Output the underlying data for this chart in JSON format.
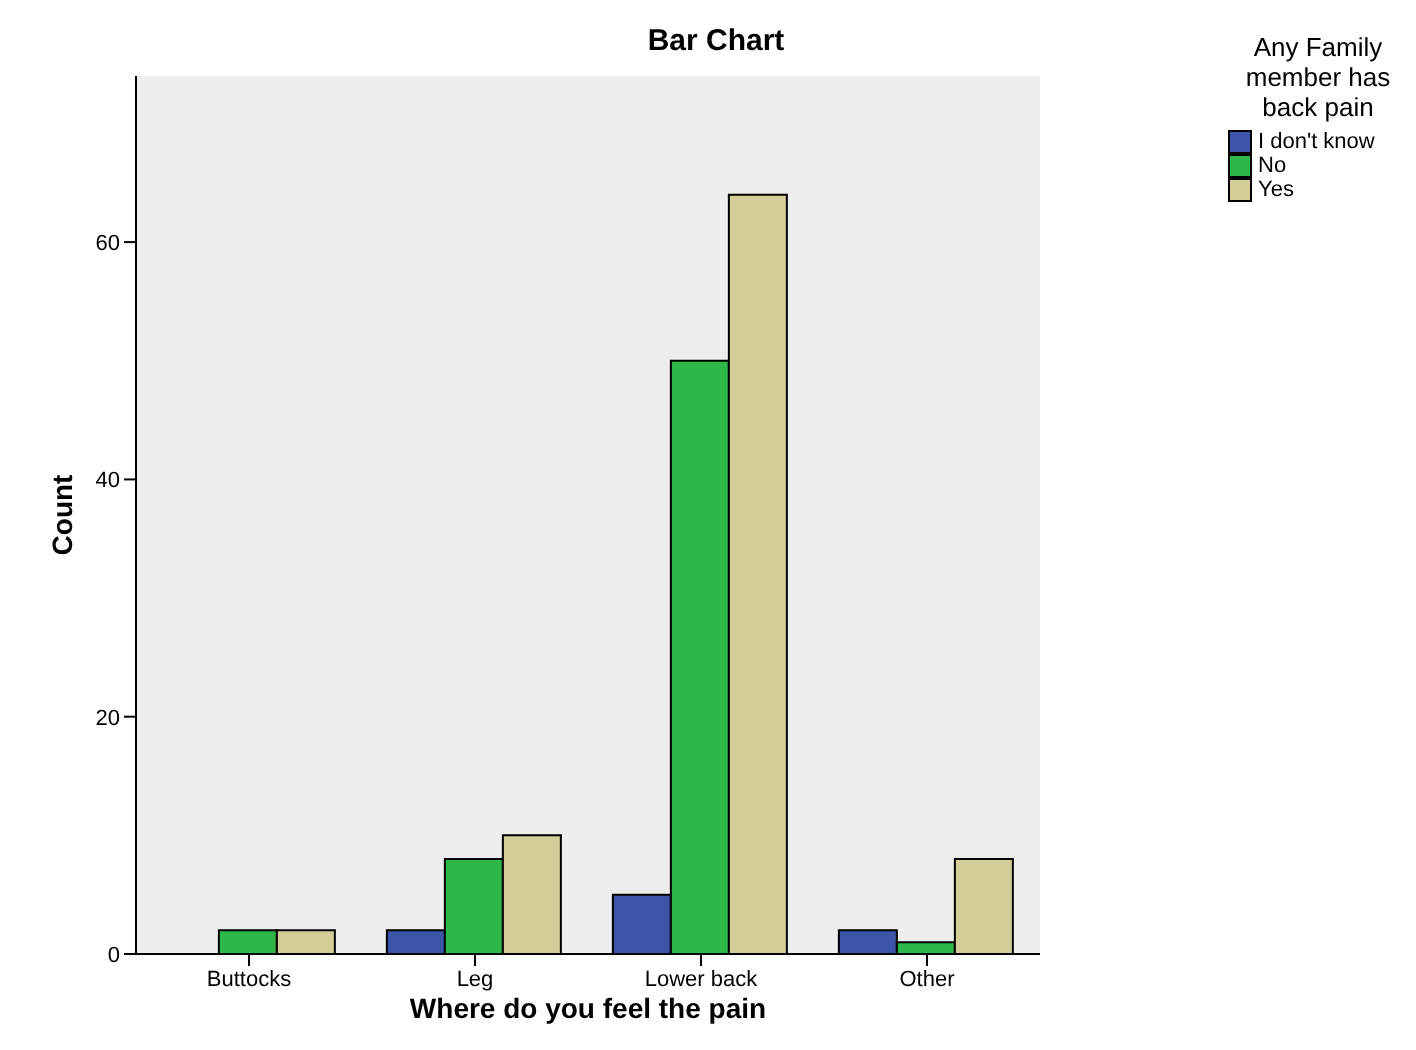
{
  "chart_data": {
    "type": "bar",
    "title": "Bar Chart",
    "xlabel": "Where do you feel the pain",
    "ylabel": "Count",
    "legend_title": "Any Family member has back pain",
    "categories": [
      "Buttocks",
      "Leg",
      "Lower back",
      "Other"
    ],
    "series": [
      {
        "name": "I don't know",
        "color": "#3d55a8",
        "values": [
          null,
          2,
          5,
          2
        ]
      },
      {
        "name": "No",
        "color": "#2fb84a",
        "values": [
          2,
          8,
          50,
          1
        ]
      },
      {
        "name": "Yes",
        "color": "#d3cd97",
        "values": [
          2,
          10,
          64,
          8
        ]
      }
    ],
    "ylim": [
      0,
      74
    ],
    "yticks": [
      0,
      20,
      40,
      60
    ],
    "grid": false,
    "legend": "top right"
  }
}
